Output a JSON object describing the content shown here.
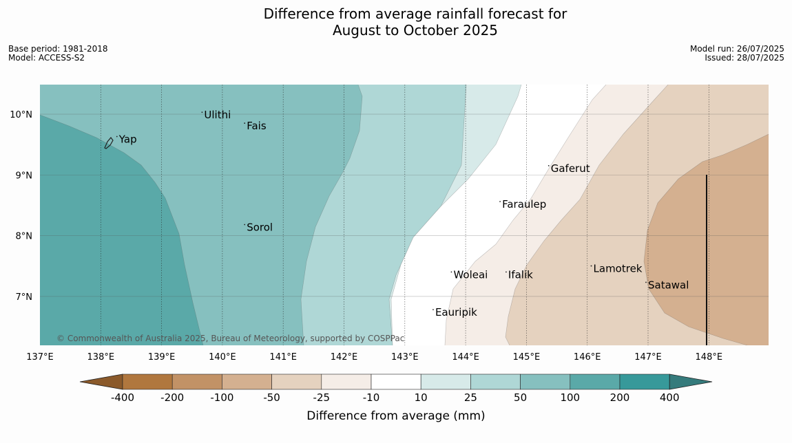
{
  "header": {
    "title_line1": "Difference from average rainfall forecast for",
    "title_line2": "August to October 2025",
    "base_period": "Base period: 1981-2018",
    "model": "Model: ACCESS-S2",
    "model_run": "Model run: 26/07/2025",
    "issued": "Issued: 28/07/2025"
  },
  "map": {
    "copyright": "© Commonwealth of Australia 2025, Bureau of Meteorology, supported by COSPPac",
    "lon_ticks": [
      "137°E",
      "138°E",
      "139°E",
      "140°E",
      "141°E",
      "142°E",
      "143°E",
      "144°E",
      "145°E",
      "146°E",
      "147°E",
      "148°E"
    ],
    "lat_ticks": [
      "10°N",
      "9°N",
      "8°N",
      "7°N"
    ],
    "places": [
      {
        "name": "Yap",
        "lon": 138.3,
        "lat": 9.53
      },
      {
        "name": "Ulithi",
        "lon": 139.7,
        "lat": 9.93
      },
      {
        "name": "Fais",
        "lon": 140.4,
        "lat": 9.75
      },
      {
        "name": "Gaferut",
        "lon": 145.4,
        "lat": 9.05
      },
      {
        "name": "Faraulep",
        "lon": 144.6,
        "lat": 8.46
      },
      {
        "name": "Sorol",
        "lon": 140.4,
        "lat": 8.08
      },
      {
        "name": "Lamotrek",
        "lon": 146.1,
        "lat": 7.4
      },
      {
        "name": "Woleai",
        "lon": 143.8,
        "lat": 7.3
      },
      {
        "name": "Ifalik",
        "lon": 144.7,
        "lat": 7.3
      },
      {
        "name": "Satawal",
        "lon": 147.0,
        "lat": 7.13
      },
      {
        "name": "Eauripik",
        "lon": 143.5,
        "lat": 6.68
      }
    ]
  },
  "legend": {
    "title": "Difference from average (mm)",
    "labels": [
      "-400",
      "-200",
      "-100",
      "-50",
      "-25",
      "-10",
      "10",
      "25",
      "50",
      "100",
      "200",
      "400"
    ],
    "colors": [
      "#8b5a2b",
      "#b0773e",
      "#c29266",
      "#d4b090",
      "#e5d2bf",
      "#f5ede7",
      "#ffffff",
      "#d7eae9",
      "#afd7d6",
      "#86c0bf",
      "#5aa9a8",
      "#37999a",
      "#357b7c"
    ]
  }
}
